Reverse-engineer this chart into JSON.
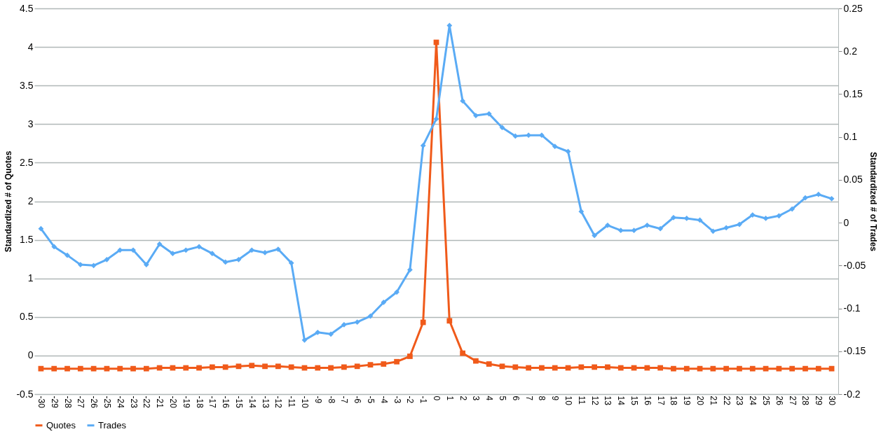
{
  "chart_data": {
    "type": "line",
    "ylabel": "Standardized # of Quotes",
    "y2label": "Standardized # of Trades",
    "categories": [
      "-30",
      "-29",
      "-28",
      "-27",
      "-26",
      "-25",
      "-24",
      "-23",
      "-22",
      "-21",
      "-20",
      "-19",
      "-18",
      "-17",
      "-16",
      "-15",
      "-14",
      "-13",
      "-12",
      "-11",
      "-10",
      "-9",
      "-8",
      "-7",
      "-6",
      "-5",
      "-4",
      "-3",
      "-2",
      "-1",
      "0",
      "1",
      "2",
      "3",
      "4",
      "5",
      "6",
      "7",
      "8",
      "9",
      "10",
      "11",
      "12",
      "13",
      "14",
      "15",
      "16",
      "17",
      "18",
      "19",
      "20",
      "21",
      "22",
      "23",
      "24",
      "25",
      "26",
      "27",
      "28",
      "29",
      "30"
    ],
    "ylim": [
      -0.5,
      4.5
    ],
    "yticks": [
      -0.5,
      0,
      0.5,
      1,
      1.5,
      2,
      2.5,
      3,
      3.5,
      4,
      4.5
    ],
    "y2lim": [
      -0.2,
      0.25
    ],
    "y2ticks": [
      -0.2,
      -0.15,
      -0.1,
      -0.05,
      0,
      0.05,
      0.1,
      0.15,
      0.2,
      0.25
    ],
    "grid": "y",
    "legend": "bottom",
    "line_style": "solid",
    "series": [
      {
        "name": "Quotes",
        "color": "#f05a1a",
        "marker": "square",
        "values": [
          -0.17,
          -0.17,
          -0.17,
          -0.17,
          -0.17,
          -0.17,
          -0.17,
          -0.17,
          -0.17,
          -0.16,
          -0.16,
          -0.16,
          -0.16,
          -0.15,
          -0.15,
          -0.14,
          -0.13,
          -0.14,
          -0.14,
          -0.15,
          -0.16,
          -0.16,
          -0.16,
          -0.15,
          -0.14,
          -0.12,
          -0.11,
          -0.08,
          -0.01,
          0.43,
          4.06,
          0.45,
          0.03,
          -0.07,
          -0.11,
          -0.14,
          -0.15,
          -0.16,
          -0.16,
          -0.16,
          -0.16,
          -0.15,
          -0.15,
          -0.15,
          -0.16,
          -0.16,
          -0.16,
          -0.16,
          -0.17,
          -0.17,
          -0.17,
          -0.17,
          -0.17,
          -0.17,
          -0.17,
          -0.17,
          -0.17,
          -0.17,
          -0.17,
          -0.17,
          -0.17
        ]
      },
      {
        "name": "Trades",
        "color": "#5aabf5",
        "marker": "diamond",
        "axis": "y2",
        "values": [
          -0.007,
          -0.028,
          -0.038,
          -0.049,
          -0.05,
          -0.043,
          -0.032,
          -0.032,
          -0.049,
          -0.025,
          -0.036,
          -0.032,
          -0.028,
          -0.036,
          -0.046,
          -0.043,
          -0.032,
          -0.035,
          -0.031,
          -0.047,
          -0.137,
          -0.128,
          -0.13,
          -0.119,
          -0.116,
          -0.109,
          -0.093,
          -0.081,
          -0.055,
          0.09,
          0.121,
          0.23,
          0.142,
          0.125,
          0.127,
          0.111,
          0.101,
          0.102,
          0.102,
          0.089,
          0.083,
          0.013,
          -0.015,
          -0.003,
          -0.009,
          -0.009,
          -0.003,
          -0.007,
          0.006,
          0.005,
          0.003,
          -0.01,
          -0.006,
          -0.002,
          0.009,
          0.005,
          0.008,
          0.016,
          0.029,
          0.033,
          0.028
        ]
      }
    ]
  }
}
